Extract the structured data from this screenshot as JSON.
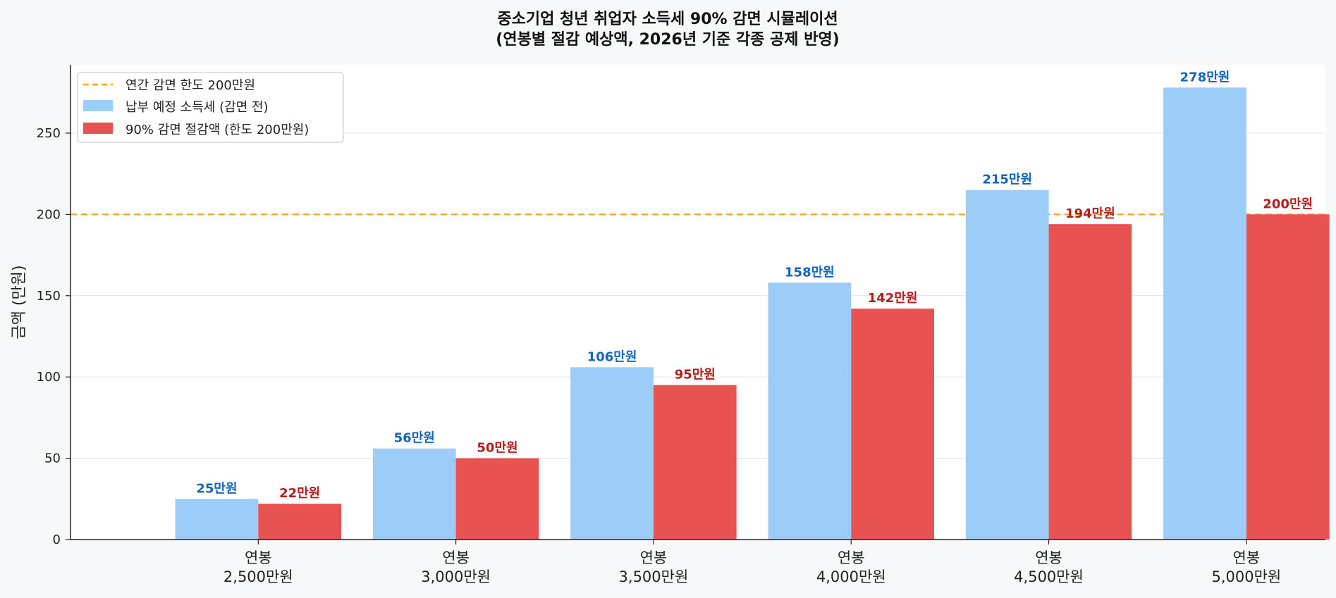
{
  "chart_data": {
    "type": "bar",
    "title": "중소기업 청년 취업자 소득세 90% 감면 시뮬레이션",
    "subtitle": "(연봉별 절감 예상액, 2026년 기준 각종 공제 반영)",
    "xlabel": "",
    "ylabel": "금액 (만원)",
    "ylim": [
      0,
      292
    ],
    "yticks": [
      0,
      50,
      100,
      150,
      200,
      250
    ],
    "grid": true,
    "legend_position": "top-left",
    "categories": [
      [
        "연봉",
        "2,500만원"
      ],
      [
        "연봉",
        "3,000만원"
      ],
      [
        "연봉",
        "3,500만원"
      ],
      [
        "연봉",
        "4,000만원"
      ],
      [
        "연봉",
        "4,500만원"
      ],
      [
        "연봉",
        "5,000만원"
      ]
    ],
    "series": [
      {
        "name": "납부 예정 소득세 (감면 전)",
        "color": "#9bcdf8",
        "label_color": "#1565c0",
        "values": [
          25,
          56,
          106,
          158,
          215,
          278
        ],
        "labels": [
          "25만원",
          "56만원",
          "106만원",
          "158만원",
          "215만원",
          "278만원"
        ]
      },
      {
        "name": "90% 감면 절감액 (한도 200만원)",
        "color": "#e85250",
        "label_color": "#b71c1c",
        "values": [
          22,
          50,
          95,
          142,
          194,
          200
        ],
        "labels": [
          "22만원",
          "50만원",
          "95만원",
          "142만원",
          "194만원",
          "200만원"
        ]
      }
    ],
    "reference_line": {
      "name": "연간 감면 한도 200만원",
      "value": 200,
      "color": "#f5a623",
      "style": "dashed"
    }
  }
}
